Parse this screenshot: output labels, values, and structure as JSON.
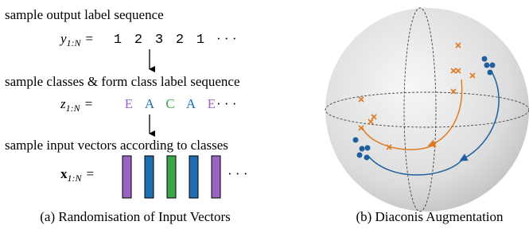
{
  "panel_a": {
    "step1": "sample output label sequence",
    "y_var": "y",
    "y_sub": "1:N",
    "eq": "=",
    "labels": [
      "1",
      "2",
      "3",
      "2",
      "1"
    ],
    "ellipsis": "· · ·",
    "step2": "sample classes & form class label sequence",
    "z_var": "z",
    "classes": [
      "E",
      "A",
      "C",
      "A",
      "E"
    ],
    "class_colors": [
      "#9b63c4",
      "#1f6db0",
      "#3aa648",
      "#1f6db0",
      "#9b63c4"
    ],
    "step3": "sample input vectors according to classes",
    "x_var": "x",
    "caption": "(a) Randomisation of Input Vectors"
  },
  "panel_b": {
    "caption": "(b) Diaconis Augmentation"
  }
}
